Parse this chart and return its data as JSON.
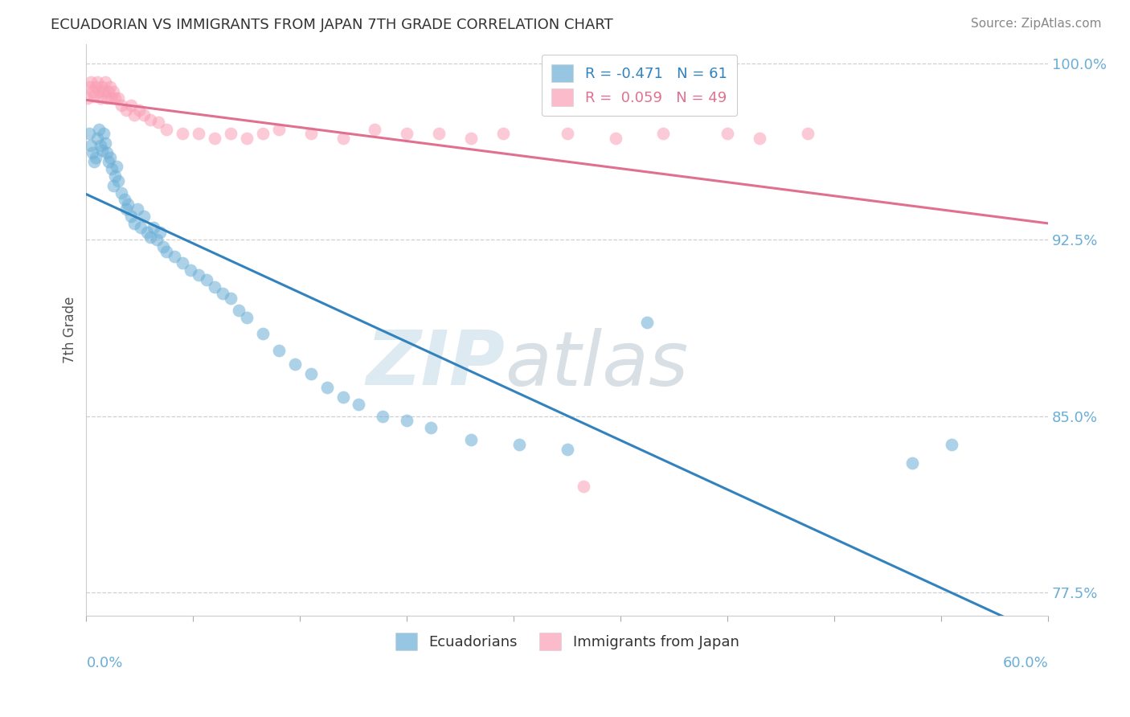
{
  "title": "ECUADORIAN VS IMMIGRANTS FROM JAPAN 7TH GRADE CORRELATION CHART",
  "source": "Source: ZipAtlas.com",
  "ylabel": "7th Grade",
  "xlim": [
    0.0,
    0.6
  ],
  "ylim": [
    0.765,
    1.008
  ],
  "yticks": [
    0.775,
    0.85,
    0.925,
    1.0
  ],
  "ytick_labels": [
    "77.5%",
    "85.0%",
    "92.5%",
    "100.0%"
  ],
  "legend_entries": [
    {
      "label": "Ecuadorians",
      "color": "#a8c4e0"
    },
    {
      "label": "Immigrants from Japan",
      "color": "#f0a0b0"
    }
  ],
  "R_blue": -0.471,
  "N_blue": 61,
  "R_pink": 0.059,
  "N_pink": 49,
  "blue_scatter_x": [
    0.002,
    0.003,
    0.004,
    0.005,
    0.006,
    0.007,
    0.008,
    0.009,
    0.01,
    0.011,
    0.012,
    0.013,
    0.014,
    0.015,
    0.016,
    0.017,
    0.018,
    0.019,
    0.02,
    0.022,
    0.024,
    0.025,
    0.026,
    0.028,
    0.03,
    0.032,
    0.034,
    0.036,
    0.038,
    0.04,
    0.042,
    0.044,
    0.046,
    0.048,
    0.05,
    0.055,
    0.06,
    0.065,
    0.07,
    0.075,
    0.08,
    0.085,
    0.09,
    0.095,
    0.1,
    0.11,
    0.12,
    0.13,
    0.14,
    0.15,
    0.16,
    0.17,
    0.185,
    0.2,
    0.215,
    0.24,
    0.27,
    0.3,
    0.35,
    0.515,
    0.54
  ],
  "blue_scatter_y": [
    0.97,
    0.965,
    0.962,
    0.958,
    0.96,
    0.968,
    0.972,
    0.965,
    0.963,
    0.97,
    0.966,
    0.962,
    0.958,
    0.96,
    0.955,
    0.948,
    0.952,
    0.956,
    0.95,
    0.945,
    0.942,
    0.938,
    0.94,
    0.935,
    0.932,
    0.938,
    0.93,
    0.935,
    0.928,
    0.926,
    0.93,
    0.925,
    0.928,
    0.922,
    0.92,
    0.918,
    0.915,
    0.912,
    0.91,
    0.908,
    0.905,
    0.902,
    0.9,
    0.895,
    0.892,
    0.885,
    0.878,
    0.872,
    0.868,
    0.862,
    0.858,
    0.855,
    0.85,
    0.848,
    0.845,
    0.84,
    0.838,
    0.836,
    0.89,
    0.83,
    0.838
  ],
  "pink_scatter_x": [
    0.001,
    0.002,
    0.003,
    0.004,
    0.005,
    0.006,
    0.007,
    0.008,
    0.009,
    0.01,
    0.011,
    0.012,
    0.013,
    0.014,
    0.015,
    0.016,
    0.017,
    0.018,
    0.02,
    0.022,
    0.025,
    0.028,
    0.03,
    0.033,
    0.036,
    0.04,
    0.045,
    0.05,
    0.06,
    0.07,
    0.08,
    0.09,
    0.1,
    0.11,
    0.12,
    0.14,
    0.16,
    0.18,
    0.2,
    0.22,
    0.24,
    0.26,
    0.3,
    0.33,
    0.36,
    0.4,
    0.42,
    0.45,
    0.31
  ],
  "pink_scatter_y": [
    0.985,
    0.99,
    0.992,
    0.988,
    0.986,
    0.99,
    0.992,
    0.988,
    0.985,
    0.99,
    0.988,
    0.992,
    0.985,
    0.988,
    0.99,
    0.985,
    0.988,
    0.985,
    0.985,
    0.982,
    0.98,
    0.982,
    0.978,
    0.98,
    0.978,
    0.976,
    0.975,
    0.972,
    0.97,
    0.97,
    0.968,
    0.97,
    0.968,
    0.97,
    0.972,
    0.97,
    0.968,
    0.972,
    0.97,
    0.97,
    0.968,
    0.97,
    0.97,
    0.968,
    0.97,
    0.97,
    0.968,
    0.97,
    0.82
  ],
  "watermark_zip": "ZIP",
  "watermark_atlas": "atlas",
  "blue_color": "#6baed6",
  "pink_color": "#fa9fb5",
  "blue_line_color": "#3182bd",
  "pink_line_color": "#e07090",
  "grid_color": "#d0d0d0",
  "tick_color": "#6baed6"
}
